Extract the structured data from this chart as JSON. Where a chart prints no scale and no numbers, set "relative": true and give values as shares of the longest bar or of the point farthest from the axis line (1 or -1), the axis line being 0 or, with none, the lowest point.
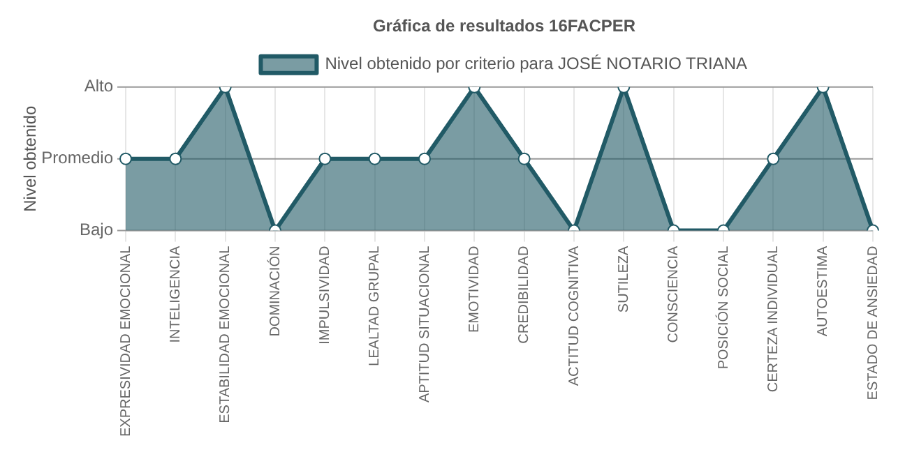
{
  "chart_data": {
    "type": "area",
    "title": "Gráfica de resultados 16FACPER",
    "ylabel": "Nivel obtenido",
    "categories": [
      "EXPRESIVIDAD EMOCIONAL",
      "INTELIGENCIA",
      "ESTABILIDAD EMOCIONAL",
      "DOMINACIÓN",
      "IMPULSIVIDAD",
      "LEALTAD GRUPAL",
      "APTITUD SITUACIONAL",
      "EMOTIVIDAD",
      "CREDIBILIDAD",
      "ACTITUD COGNITIVA",
      "SUTILEZA",
      "CONSCIENCIA",
      "POSICIÓN SOCIAL",
      "CERTEZA INDIVIDUAL",
      "AUTOESTIMA",
      "ESTADO DE ANSIEDAD"
    ],
    "series": [
      {
        "name": "Nivel obtenido por criterio para JOSÉ NOTARIO TRIANA",
        "color": "#215a66",
        "values": [
          0.5,
          0.5,
          1,
          0,
          0.5,
          0.5,
          0.5,
          1,
          0.5,
          0,
          1,
          0,
          0,
          0.5,
          1,
          0
        ]
      }
    ],
    "relative": true,
    "annotations": [
      "Alto",
      "Bajo"
    ],
    "ref_lines": [
      {
        "axis": "y",
        "value": 0.5,
        "label": "Promedio",
        "color": "#999999"
      }
    ],
    "grid": "x",
    "legend": "top",
    "marker": "circle"
  }
}
